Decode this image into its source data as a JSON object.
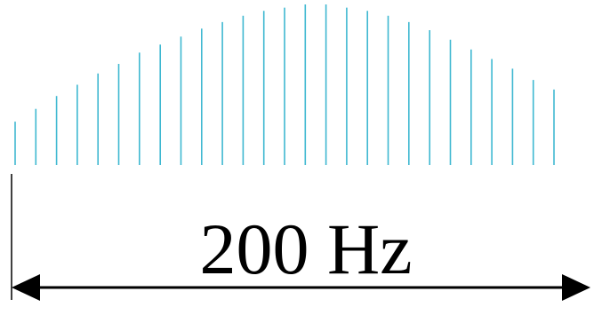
{
  "diagram": {
    "bandwidth_label": "200 Hz",
    "subcarrier_amplitudes": [
      0.27,
      0.35,
      0.43,
      0.5,
      0.57,
      0.63,
      0.7,
      0.75,
      0.8,
      0.85,
      0.89,
      0.93,
      0.96,
      0.98,
      1.0,
      1.0,
      0.98,
      0.96,
      0.93,
      0.89,
      0.84,
      0.78,
      0.72,
      0.66,
      0.6,
      0.53,
      0.47
    ],
    "colors": {
      "subcarrier_line": "#3fb8d1",
      "arrow": "#000000",
      "text": "#000000"
    }
  }
}
